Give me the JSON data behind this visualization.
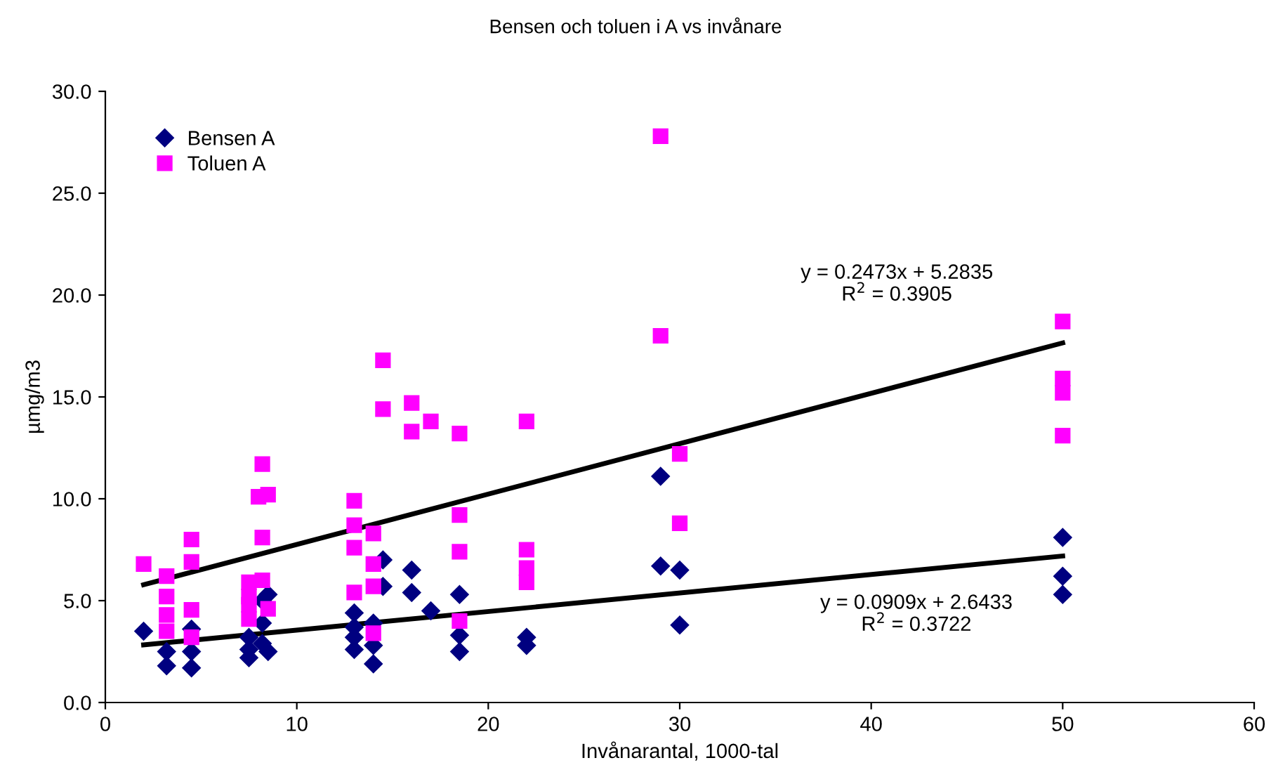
{
  "chart_data": {
    "type": "scatter",
    "title": "Bensen och toluen i A vs invånare",
    "xlabel": "Invånarantal, 1000-tal",
    "ylabel": "µmg/m3",
    "xlim": [
      0,
      60
    ],
    "xticks": [
      0,
      10,
      20,
      30,
      40,
      50,
      60
    ],
    "ylim": [
      0,
      30
    ],
    "yticks": [
      {
        "value": 0,
        "label": "0.0"
      },
      {
        "value": 5,
        "label": "5.0"
      },
      {
        "value": 10,
        "label": "10.0"
      },
      {
        "value": 15,
        "label": "15.0"
      },
      {
        "value": 20,
        "label": "20.0"
      },
      {
        "value": 25,
        "label": "25.0"
      },
      {
        "value": 30,
        "label": "30.0"
      }
    ],
    "grid": false,
    "legend": "top left",
    "series": [
      {
        "name": "Bensen A",
        "marker": "diamond",
        "color": "#000080",
        "x": [
          2,
          3.2,
          3.2,
          4.5,
          4.5,
          4.5,
          7.5,
          7.5,
          7.5,
          8.2,
          8.5,
          8.2,
          8.5,
          8.2,
          13,
          13,
          13,
          13,
          14,
          14,
          14,
          14.5,
          14.5,
          16,
          16,
          17,
          18.5,
          18.5,
          18.5,
          22,
          22,
          29,
          29,
          30,
          30,
          50,
          50,
          50
        ],
        "values": [
          3.5,
          2.5,
          1.8,
          3.6,
          2.5,
          1.7,
          3.2,
          2.6,
          2.2,
          3.9,
          5.3,
          2.9,
          2.5,
          5.0,
          4.4,
          3.7,
          3.2,
          2.6,
          3.9,
          2.8,
          1.9,
          7.0,
          5.7,
          6.5,
          5.4,
          4.5,
          5.3,
          3.3,
          2.5,
          3.2,
          2.8,
          11.1,
          6.7,
          6.5,
          3.8,
          8.1,
          6.2,
          5.3
        ]
      },
      {
        "name": "Toluen A",
        "marker": "square",
        "color": "#ff00ff",
        "x": [
          2,
          3.2,
          3.2,
          3.2,
          3.2,
          4.5,
          4.5,
          4.5,
          4.5,
          7.5,
          7.5,
          7.5,
          7.5,
          8.2,
          8.0,
          8.5,
          8.2,
          8.2,
          8.5,
          13,
          13,
          13,
          13,
          14,
          14,
          14,
          14,
          14.5,
          14.5,
          16,
          16,
          17,
          18.5,
          18.5,
          18.5,
          18.5,
          22,
          22,
          22,
          22,
          29,
          29,
          30,
          30,
          50,
          50,
          50,
          50
        ],
        "values": [
          6.8,
          6.2,
          5.2,
          4.3,
          3.5,
          8.0,
          6.9,
          4.55,
          3.2,
          5.9,
          5.2,
          4.8,
          4.1,
          11.7,
          10.1,
          10.2,
          8.1,
          6.0,
          4.6,
          9.9,
          8.7,
          7.6,
          5.4,
          8.3,
          6.8,
          5.7,
          3.4,
          16.8,
          14.4,
          14.7,
          13.3,
          13.8,
          13.2,
          9.2,
          7.4,
          4.0,
          13.8,
          7.5,
          6.6,
          5.9,
          27.8,
          18.0,
          12.2,
          8.8,
          18.7,
          15.9,
          15.2,
          13.1
        ]
      },
      {
        "type": "line",
        "color": "#000000",
        "x": [
          2,
          50
        ],
        "values": [
          5.78,
          17.65
        ]
      },
      {
        "type": "line",
        "color": "#000000",
        "x": [
          2,
          50
        ],
        "values": [
          2.83,
          7.19
        ]
      }
    ],
    "annotations": [
      "y = 0.2473x + 5.2835\nR$^{2}$ = 0.3905",
      "y = 0.0909x + 2.6433\nR$^{2}$ = 0.3722"
    ]
  }
}
